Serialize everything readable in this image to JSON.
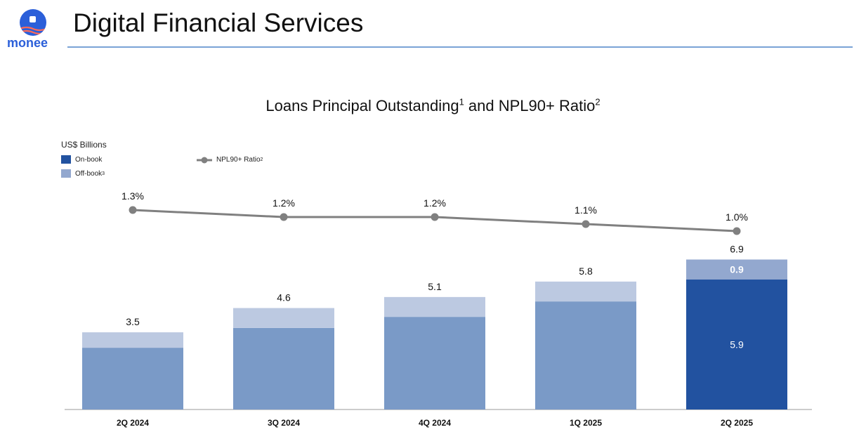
{
  "logo": {
    "text": "monee"
  },
  "page_title": "Digital Financial Services",
  "chart_title": {
    "main": "Loans Principal Outstanding",
    "fn1": "1",
    "mid": " and NPL90+ Ratio",
    "fn2": "2"
  },
  "units": "US$ Billions",
  "legend": {
    "on_book": "On-book",
    "off_book": "Off-book",
    "off_book_fn": "3",
    "npl": "NPL90+ Ratio",
    "npl_fn": "2"
  },
  "colors": {
    "on_book_current": "#2252a0",
    "off_book_current": "#93a8cf",
    "on_book_past": "#7a9ac7",
    "off_book_past": "#bcc9e1",
    "npl_line": "#808080",
    "title_rule": "#7aa3d6",
    "brand": "#2b5fd9"
  },
  "chart_data": {
    "type": "bar",
    "stacked": true,
    "categories": [
      "2Q 2024",
      "3Q 2024",
      "4Q 2024",
      "1Q 2025",
      "2Q 2025"
    ],
    "totals": [
      3.5,
      4.6,
      5.1,
      5.8,
      6.9
    ],
    "series": [
      {
        "name": "On-book",
        "values": [
          2.8,
          3.7,
          4.2,
          4.9,
          5.9
        ]
      },
      {
        "name": "Off-book",
        "values": [
          0.7,
          0.9,
          0.9,
          0.9,
          0.9
        ]
      }
    ],
    "segment_labels": {
      "on_book": [
        null,
        null,
        null,
        null,
        "5.9"
      ],
      "off_book": [
        null,
        null,
        null,
        null,
        "0.9"
      ]
    },
    "line": {
      "name": "NPL90+ Ratio",
      "values": [
        1.3,
        1.2,
        1.2,
        1.1,
        1.0
      ],
      "labels": [
        "1.3%",
        "1.2%",
        "1.2%",
        "1.1%",
        "1.0%"
      ]
    },
    "ylim": [
      0,
      7.5
    ],
    "grid": false,
    "legend_position": "top-left"
  }
}
